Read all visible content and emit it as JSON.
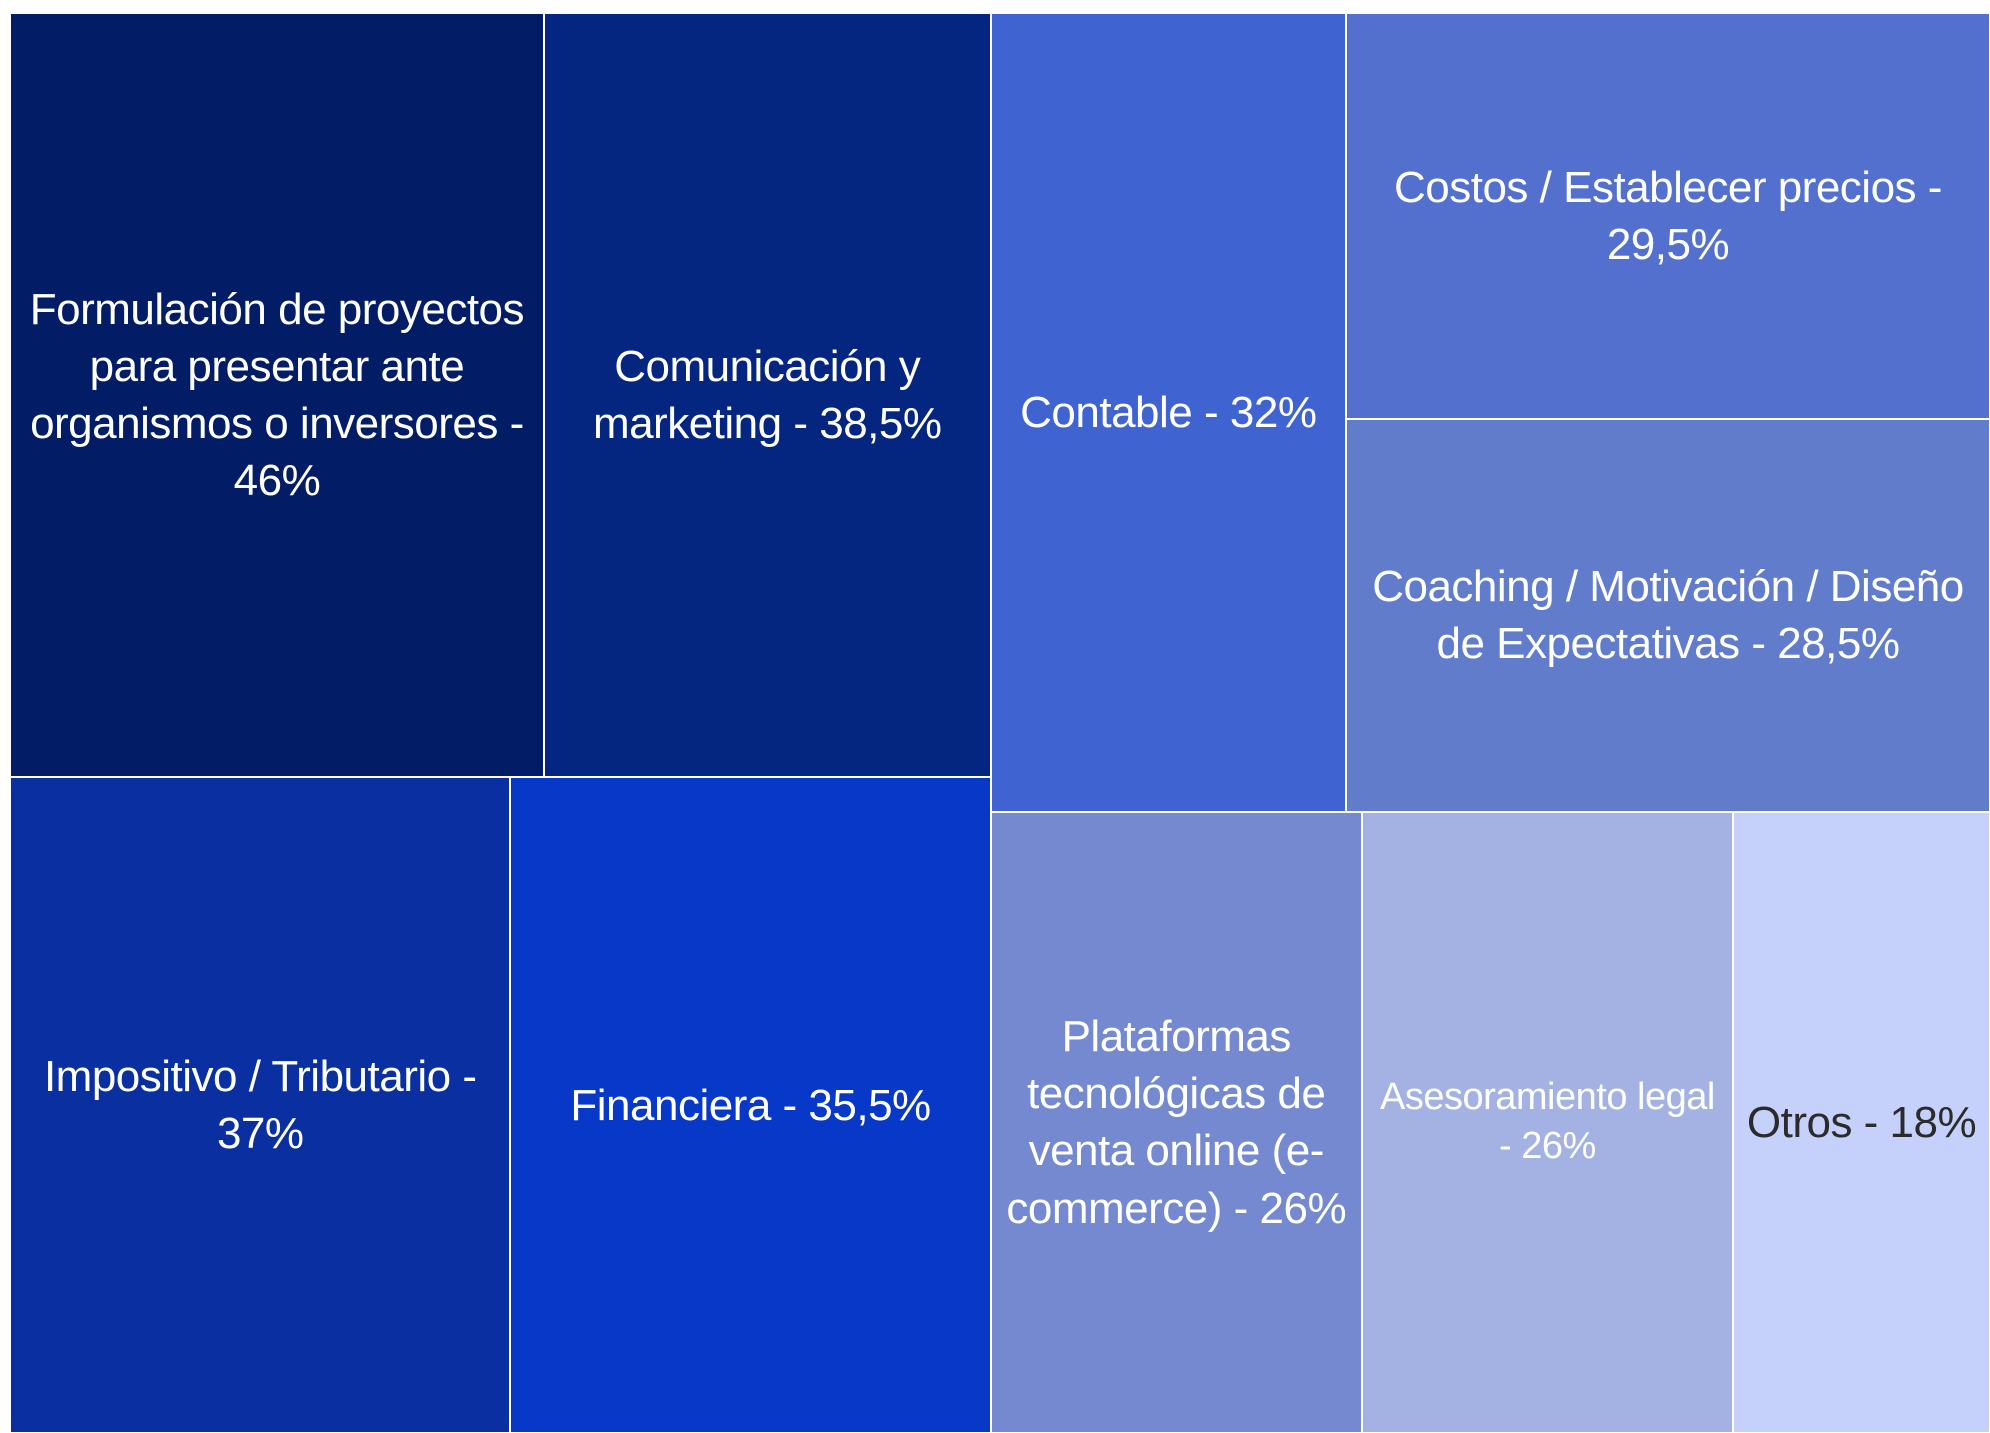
{
  "chart_data": {
    "type": "treemap",
    "categories": [
      "Formulación de proyectos para presentar ante organismos o inversores - 46%",
      "Comunicación y marketing - 38,5%",
      "Contable - 32%",
      "Costos / Establecer precios - 29,5%",
      "Coaching / Motivación / Diseño de Expectativas - 28,5%",
      "Impositivo / Tributario - 37%",
      "Financiera - 35,5%",
      "Plataformas tecnológicas de venta online (e-commerce) - 26%",
      "Asesoramiento legal - 26%",
      "Otros - 18%"
    ],
    "values": [
      46,
      38.5,
      32,
      29.5,
      28.5,
      37,
      35.5,
      26,
      26,
      18
    ],
    "colors": [
      "#031c66",
      "#052680",
      "#3f63d1",
      "#5470cf",
      "#627ccc",
      "#0a2fa0",
      "#0838c8",
      "#7489cf",
      "#a3b2e3",
      "#c5d1fb"
    ],
    "text_colors": [
      "#ffffff",
      "#ffffff",
      "#ffffff",
      "#ffffff",
      "#ffffff",
      "#ffffff",
      "#ffffff",
      "#ffffff",
      "#ffffff",
      "#2b2b2b"
    ]
  }
}
